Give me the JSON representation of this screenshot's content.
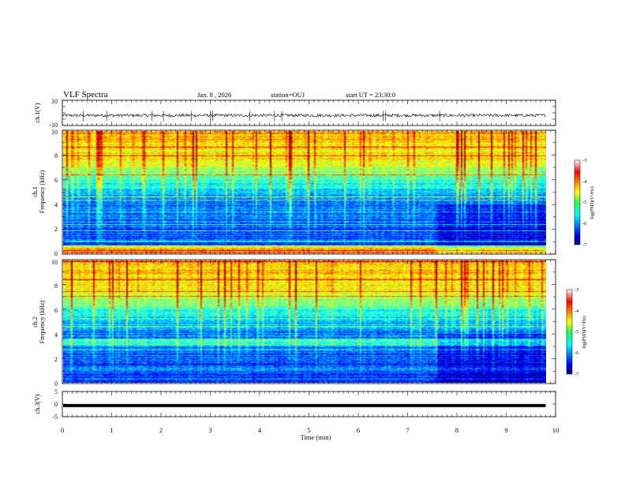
{
  "header": {
    "title": "VLF Spectra",
    "date": "Jan. 8 , 2026",
    "station": "station=OUJ",
    "start_label": "start UT = 23:30:0"
  },
  "chart_data": [
    {
      "type": "line",
      "name": "ch1-waveform",
      "ylabel": "ch.1(V)",
      "ylim": [
        -10,
        10
      ],
      "ytick_labels": [
        "10",
        "-10"
      ],
      "baseline": -2,
      "noise_amplitude": 1.2,
      "spike_times_min": [
        0.42,
        0.9,
        1.82,
        2.05,
        2.62,
        3.0,
        3.05,
        3.8,
        4.3,
        4.45,
        6.5,
        6.55,
        7.65
      ]
    },
    {
      "type": "heatmap",
      "name": "ch1-spectrogram",
      "ylabel": "Frequency (kHz)",
      "channel_label": "ch.1",
      "x_range_min": [
        0,
        9.8
      ],
      "ylim": [
        0,
        10
      ],
      "ytick_labels": [
        "0",
        "2",
        "4",
        "6",
        "8",
        "10"
      ],
      "colorbar": {
        "label": "log(PSD)(V²/Hz)",
        "range": [
          -7,
          -3
        ],
        "tick_labels": [
          "-3",
          "-4",
          "-5",
          "-6",
          "-7"
        ]
      }
    },
    {
      "type": "heatmap",
      "name": "ch2-spectrogram",
      "ylabel": "Frequency (kHz)",
      "channel_label": "ch.2",
      "x_range_min": [
        0,
        9.8
      ],
      "ylim": [
        0,
        10
      ],
      "ytick_labels": [
        "0",
        "2",
        "4",
        "6",
        "8",
        "10"
      ],
      "colorbar": {
        "label": "log(PSD)(V²/Hz)",
        "range": [
          -7,
          -3
        ],
        "tick_labels": [
          "-3",
          "-4",
          "-5",
          "-6",
          "-7"
        ]
      }
    },
    {
      "type": "line",
      "name": "ch3-waveform",
      "ylabel": "ch.3(V)",
      "ylim": [
        -5,
        5
      ],
      "ytick_labels": [
        "5",
        "0",
        "-5"
      ],
      "baseline": -0.6
    }
  ],
  "x_axis": {
    "label": "Time (min)",
    "range": [
      0,
      10
    ],
    "tick_labels": [
      "0",
      "1",
      "2",
      "3",
      "4",
      "5",
      "6",
      "7",
      "8",
      "9",
      "10"
    ]
  }
}
